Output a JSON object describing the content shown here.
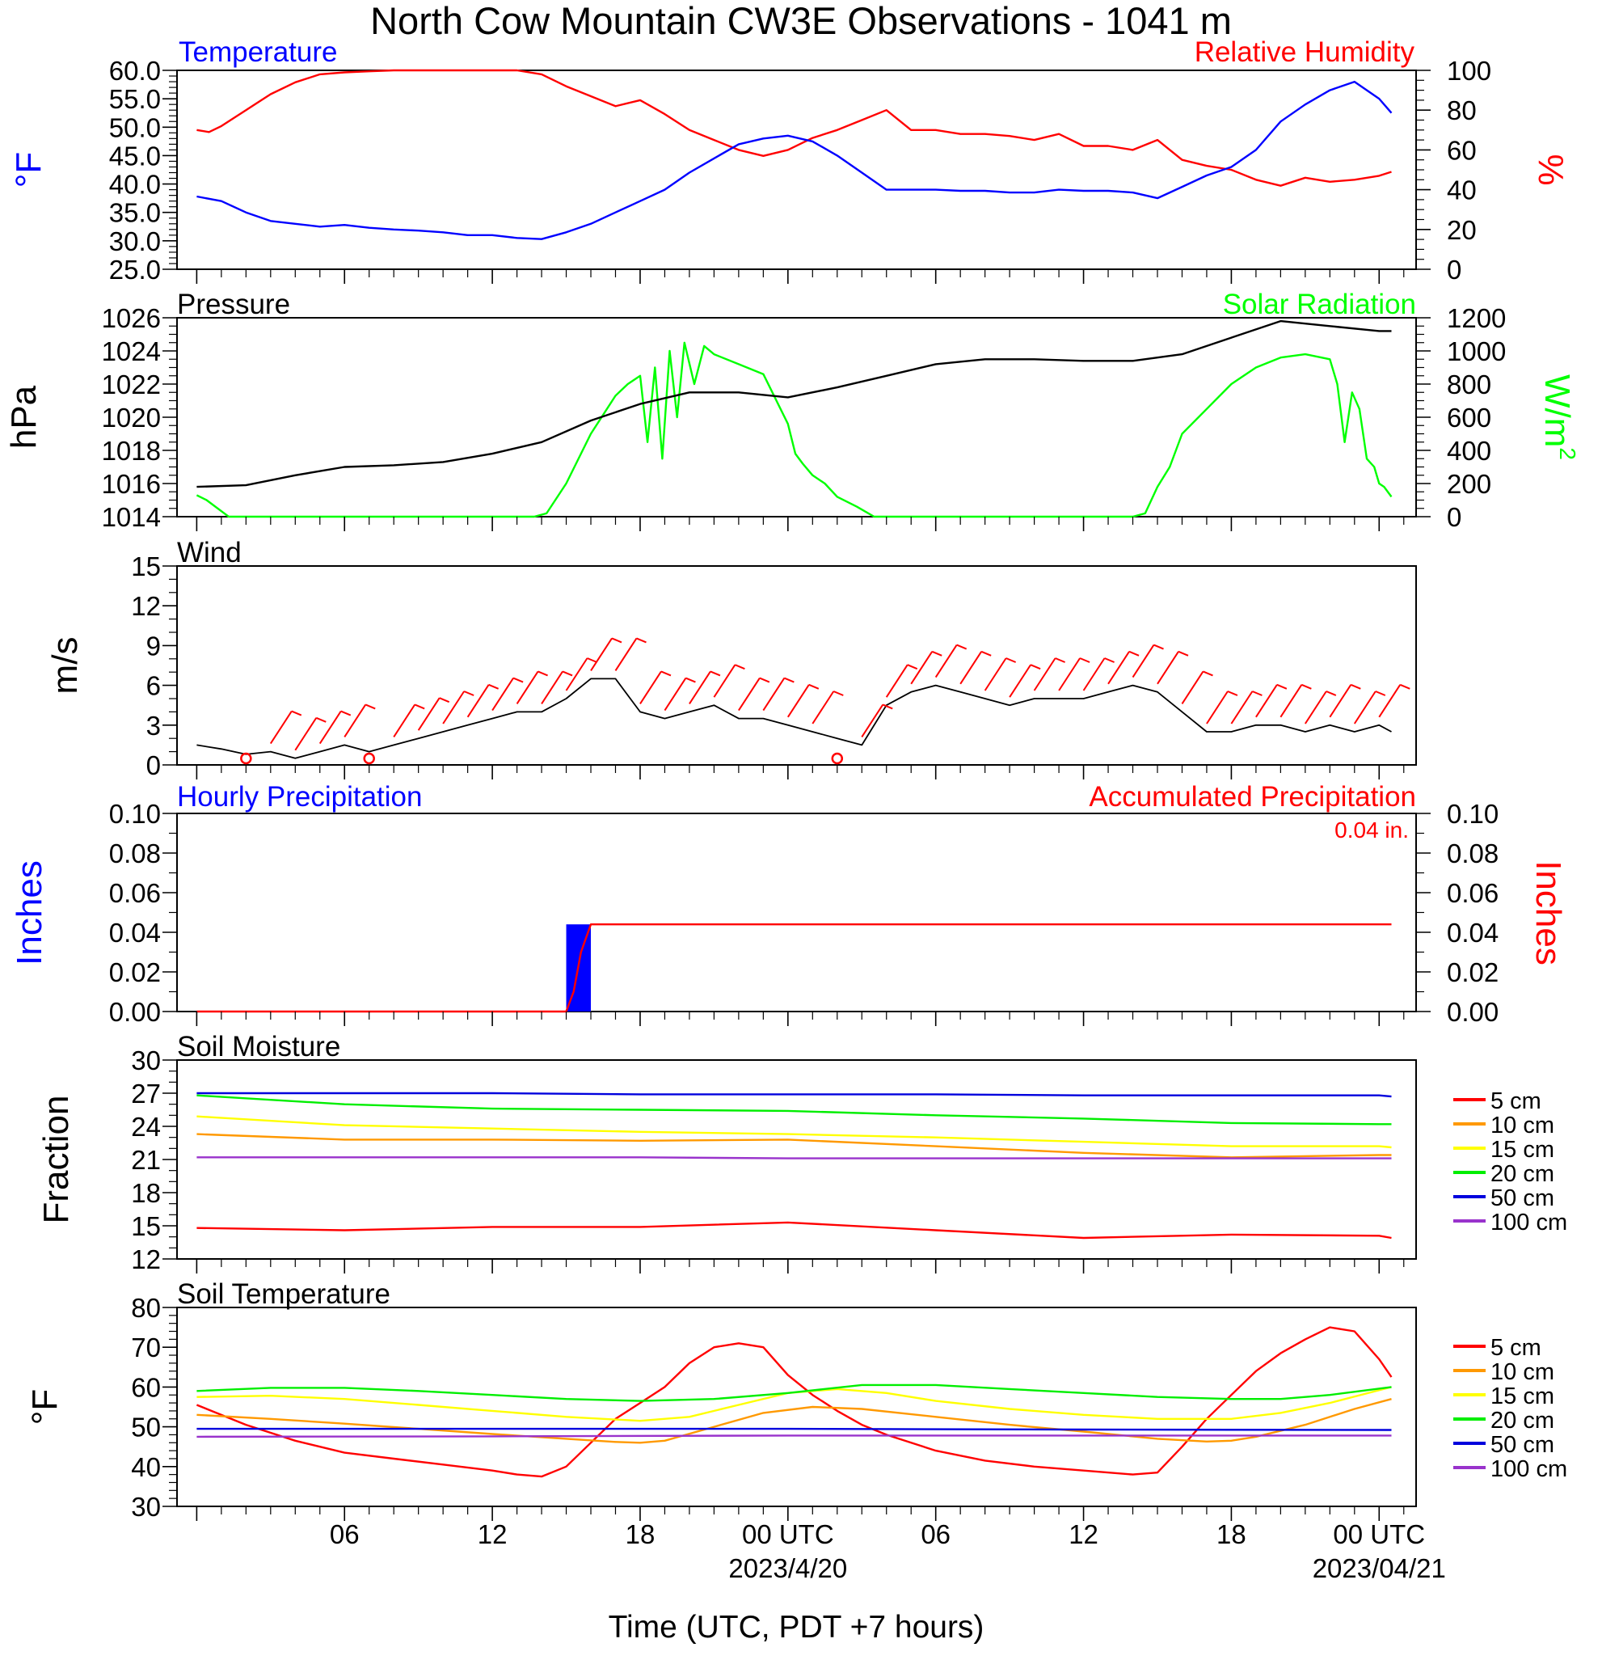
{
  "title": "North Cow Mountain CW3E Observations - 1041 m",
  "xaxis": {
    "title": "Time (UTC, PDT +7 hours)",
    "tick_labels": [
      "06",
      "12",
      "18",
      "00 UTC",
      "06",
      "12",
      "18",
      "00 UTC"
    ],
    "tick_hours": [
      6,
      12,
      18,
      24,
      30,
      36,
      42,
      48
    ],
    "date_labels": [
      "2023/4/20",
      "2023/04/21"
    ],
    "date_hours": [
      24,
      48
    ],
    "range_hours": [
      -0.8,
      49.5
    ]
  },
  "colors": {
    "temperature": "#0000ff",
    "humidity": "#ff0000",
    "pressure": "#000000",
    "solar": "#00ff00",
    "wind": "#000000",
    "barbs": "#ff0000",
    "hourly_precip": "#0000ff",
    "accum_precip": "#ff0000"
  },
  "depth_colors": {
    "5 cm": "#ff0000",
    "10 cm": "#ff9900",
    "15 cm": "#ffff00",
    "20 cm": "#00ee00",
    "50 cm": "#0000dd",
    "100 cm": "#9933cc"
  },
  "chart_data": [
    {
      "type": "line",
      "panel": "temperature-humidity",
      "left_label": "Temperature",
      "right_label": "Relative Humidity",
      "left_unit": "°F",
      "right_unit": "%",
      "left_ylim": [
        25,
        60
      ],
      "right_ylim": [
        0,
        100
      ],
      "left_ticks": [
        "25.0",
        "30.0",
        "35.0",
        "40.0",
        "45.0",
        "50.0",
        "55.0",
        "60.0"
      ],
      "right_ticks": [
        "0",
        "20",
        "40",
        "60",
        "80",
        "100"
      ],
      "series": [
        {
          "name": "Temperature",
          "axis": "left",
          "color": "#0000ff",
          "x": [
            0,
            1,
            2,
            3,
            4,
            5,
            6,
            7,
            8,
            9,
            10,
            11,
            12,
            13,
            14,
            15,
            16,
            17,
            18,
            19,
            20,
            21,
            22,
            23,
            24,
            25,
            26,
            27,
            28,
            29,
            30,
            31,
            32,
            33,
            34,
            35,
            36,
            37,
            38,
            39,
            40,
            41,
            42,
            43,
            44,
            45,
            46,
            47,
            48,
            48.5
          ],
          "y": [
            37.8,
            37.0,
            35.0,
            33.5,
            33.0,
            32.5,
            32.8,
            32.3,
            32.0,
            31.8,
            31.5,
            31.0,
            31.0,
            30.5,
            30.3,
            31.5,
            33.0,
            35.0,
            37.0,
            39.0,
            42.0,
            44.5,
            47.0,
            48.0,
            48.5,
            47.5,
            45.0,
            42.0,
            39.0,
            39.0,
            39.0,
            38.8,
            38.8,
            38.5,
            38.5,
            39.0,
            38.8,
            38.8,
            38.5,
            37.5,
            39.5,
            41.5,
            43.0,
            46.0,
            51.0,
            54.0,
            56.5,
            58.0,
            55.0,
            52.5
          ]
        },
        {
          "name": "Relative Humidity",
          "axis": "right",
          "color": "#ff0000",
          "x": [
            0,
            0.5,
            1,
            2,
            3,
            4,
            5,
            6,
            7,
            8,
            9,
            10,
            11,
            12,
            13,
            14,
            15,
            16,
            17,
            18,
            19,
            20,
            21,
            22,
            23,
            24,
            25,
            26,
            27,
            28,
            29,
            30,
            31,
            32,
            33,
            34,
            35,
            36,
            37,
            38,
            39,
            40,
            41,
            42,
            43,
            44,
            45,
            46,
            47,
            48,
            48.5
          ],
          "y": [
            70,
            69,
            72,
            80,
            88,
            94,
            98,
            99,
            99.5,
            100,
            100,
            100,
            100,
            100,
            100,
            98,
            92,
            87,
            82,
            85,
            78,
            70,
            65,
            60,
            57,
            60,
            66,
            70,
            75,
            80,
            70,
            70,
            68,
            68,
            67,
            65,
            68,
            62,
            62,
            60,
            65,
            55,
            52,
            50,
            45,
            42,
            46,
            44,
            45,
            47,
            49
          ]
        }
      ]
    },
    {
      "type": "line",
      "panel": "pressure-solar",
      "left_label": "Pressure",
      "right_label": "Solar Radiation",
      "left_unit": "hPa",
      "right_unit": "W/m",
      "right_unit_sup": "2",
      "left_ylim": [
        1014,
        1026
      ],
      "right_ylim": [
        0,
        1200
      ],
      "left_ticks": [
        "1014",
        "1016",
        "1018",
        "1020",
        "1022",
        "1024",
        "1026"
      ],
      "right_ticks": [
        "0",
        "200",
        "400",
        "600",
        "800",
        "1000",
        "1200"
      ],
      "series": [
        {
          "name": "Pressure",
          "axis": "left",
          "color": "#000000",
          "x": [
            0,
            2,
            4,
            6,
            8,
            10,
            12,
            14,
            16,
            18,
            20,
            22,
            24,
            26,
            28,
            30,
            32,
            34,
            36,
            38,
            40,
            42,
            44,
            46,
            48,
            48.5
          ],
          "y": [
            1015.8,
            1015.9,
            1016.5,
            1017.0,
            1017.1,
            1017.3,
            1017.8,
            1018.5,
            1019.8,
            1020.8,
            1021.5,
            1021.5,
            1021.2,
            1021.8,
            1022.5,
            1023.2,
            1023.5,
            1023.5,
            1023.4,
            1023.4,
            1023.8,
            1024.8,
            1025.8,
            1025.5,
            1025.2,
            1025.2
          ]
        },
        {
          "name": "Solar Radiation",
          "axis": "right",
          "color": "#00ff00",
          "x": [
            0,
            0.4,
            1.3,
            12,
            13.7,
            14.2,
            15,
            16,
            17,
            17.5,
            18,
            18.3,
            18.6,
            18.9,
            19.2,
            19.5,
            19.8,
            20.2,
            20.6,
            21,
            22,
            23,
            24,
            24.3,
            24.6,
            25,
            25.5,
            26,
            26.8,
            27.5,
            30,
            37,
            38,
            38.5,
            39,
            39.5,
            40,
            41,
            42,
            43,
            44,
            45,
            46,
            46.3,
            46.6,
            46.9,
            47.2,
            47.5,
            47.8,
            48,
            48.2,
            48.5
          ],
          "y": [
            130,
            100,
            0,
            0,
            0,
            20,
            200,
            500,
            730,
            800,
            850,
            450,
            900,
            350,
            1000,
            600,
            1050,
            800,
            1030,
            980,
            920,
            860,
            560,
            380,
            320,
            250,
            200,
            120,
            60,
            0,
            0,
            0,
            0,
            20,
            180,
            300,
            500,
            650,
            800,
            900,
            960,
            980,
            950,
            800,
            450,
            750,
            650,
            350,
            300,
            200,
            180,
            120
          ]
        }
      ]
    },
    {
      "type": "line",
      "panel": "wind",
      "label": "Wind",
      "unit": "m/s",
      "ylim": [
        0,
        15
      ],
      "ticks": [
        "0",
        "3",
        "6",
        "9",
        "12",
        "15"
      ],
      "series": [
        {
          "name": "Wind",
          "color": "#000000",
          "x": [
            0,
            1,
            2,
            3,
            4,
            5,
            6,
            7,
            8,
            9,
            10,
            11,
            12,
            13,
            14,
            15,
            16,
            17,
            18,
            19,
            20,
            21,
            22,
            23,
            24,
            25,
            26,
            27,
            28,
            29,
            30,
            31,
            32,
            33,
            34,
            35,
            36,
            37,
            38,
            39,
            40,
            41,
            42,
            43,
            44,
            45,
            46,
            47,
            48,
            48.5
          ],
          "y": [
            1.5,
            1.2,
            0.8,
            1.0,
            0.5,
            1.0,
            1.5,
            1.0,
            1.5,
            2.0,
            2.5,
            3.0,
            3.5,
            4.0,
            4.0,
            5.0,
            6.5,
            6.5,
            4.0,
            3.5,
            4.0,
            4.5,
            3.5,
            3.5,
            3.0,
            2.5,
            2.0,
            1.5,
            4.5,
            5.5,
            6.0,
            5.5,
            5.0,
            4.5,
            5.0,
            5.0,
            5.0,
            5.5,
            6.0,
            5.5,
            4.0,
            2.5,
            2.5,
            3.0,
            3.0,
            2.5,
            3.0,
            2.5,
            3.0,
            2.5
          ]
        }
      ],
      "barb_hours": [
        2,
        3,
        4,
        5,
        6,
        7,
        8,
        9,
        10,
        11,
        12,
        13,
        14,
        15,
        16,
        17,
        18,
        19,
        20,
        21,
        22,
        23,
        24,
        25,
        26,
        27,
        28,
        29,
        30,
        31,
        32,
        33,
        34,
        35,
        36,
        37,
        38,
        39,
        40,
        41,
        42,
        43,
        44,
        45,
        46,
        47,
        48
      ],
      "calm_hours": [
        2,
        7,
        26
      ]
    },
    {
      "type": "bar",
      "panel": "precipitation",
      "left_label": "Hourly Precipitation",
      "right_label": "Accumulated Precipitation",
      "total_annotation": "0.04 in.",
      "left_unit": "Inches",
      "right_unit": "Inches",
      "ylim": [
        0,
        0.1
      ],
      "left_ticks": [
        "0.00",
        "0.02",
        "0.04",
        "0.06",
        "0.08",
        "0.10"
      ],
      "right_ticks": [
        "0.00",
        "0.02",
        "0.04",
        "0.06",
        "0.08",
        "0.10"
      ],
      "bars": [
        {
          "start_hour": 15,
          "end_hour": 16,
          "value": 0.044
        }
      ],
      "accumulated": {
        "x": [
          0,
          15,
          15.3,
          15.6,
          16,
          48.5
        ],
        "y": [
          0,
          0,
          0.01,
          0.03,
          0.044,
          0.044
        ]
      }
    },
    {
      "type": "line",
      "panel": "soil-moisture",
      "label": "Soil Moisture",
      "unit": "Fraction",
      "ylim": [
        12,
        30
      ],
      "ticks": [
        "12",
        "15",
        "18",
        "21",
        "24",
        "27",
        "30"
      ],
      "x": [
        0,
        6,
        12,
        18,
        24,
        30,
        36,
        42,
        48,
        48.5
      ],
      "series": [
        {
          "name": "5 cm",
          "values": [
            14.8,
            14.6,
            14.9,
            14.9,
            15.3,
            14.6,
            13.9,
            14.2,
            14.1,
            13.9
          ]
        },
        {
          "name": "10 cm",
          "values": [
            23.3,
            22.8,
            22.8,
            22.7,
            22.8,
            22.2,
            21.6,
            21.2,
            21.4,
            21.4
          ]
        },
        {
          "name": "15 cm",
          "values": [
            24.9,
            24.1,
            23.8,
            23.5,
            23.3,
            23.0,
            22.6,
            22.2,
            22.2,
            22.1
          ]
        },
        {
          "name": "20 cm",
          "values": [
            26.8,
            26.0,
            25.6,
            25.5,
            25.4,
            25.0,
            24.7,
            24.3,
            24.2,
            24.2
          ]
        },
        {
          "name": "50 cm",
          "values": [
            27.0,
            27.0,
            27.0,
            26.9,
            26.9,
            26.9,
            26.8,
            26.8,
            26.8,
            26.7
          ]
        },
        {
          "name": "100 cm",
          "values": [
            21.2,
            21.2,
            21.2,
            21.2,
            21.1,
            21.1,
            21.1,
            21.1,
            21.1,
            21.1
          ]
        }
      ]
    },
    {
      "type": "line",
      "panel": "soil-temperature",
      "label": "Soil Temperature",
      "unit": "°F",
      "ylim": [
        30,
        80
      ],
      "ticks": [
        "30",
        "40",
        "50",
        "60",
        "70",
        "80"
      ],
      "legend": [
        "5 cm",
        "10 cm",
        "15 cm",
        "20 cm",
        "50 cm",
        "100 cm"
      ],
      "series": [
        {
          "name": "5 cm",
          "x": [
            0,
            2,
            4,
            6,
            8,
            10,
            12,
            13,
            14,
            15,
            16,
            17,
            18,
            19,
            20,
            21,
            22,
            23,
            24,
            25,
            26,
            27,
            28,
            30,
            32,
            34,
            36,
            38,
            39,
            40,
            41,
            42,
            43,
            44,
            45,
            46,
            47,
            48,
            48.5
          ],
          "y": [
            55.5,
            50.5,
            46.5,
            43.5,
            42.0,
            40.5,
            39.0,
            38.0,
            37.5,
            40.0,
            46.0,
            52.0,
            56.0,
            60.0,
            66.0,
            70.0,
            71.0,
            70.0,
            63.0,
            58.0,
            54.0,
            50.5,
            48.0,
            44.0,
            41.5,
            40.0,
            39.0,
            38.0,
            38.5,
            45.0,
            52.0,
            58.0,
            64.0,
            68.5,
            72.0,
            75.0,
            74.0,
            67.0,
            62.5
          ]
        },
        {
          "name": "10 cm",
          "x": [
            0,
            3,
            6,
            9,
            12,
            15,
            17,
            18,
            19,
            21,
            23,
            25,
            27,
            30,
            33,
            36,
            39,
            41,
            42,
            43,
            45,
            47,
            48.5
          ],
          "y": [
            53.0,
            52.0,
            50.8,
            49.5,
            48.2,
            47.0,
            46.2,
            46.0,
            46.5,
            50.0,
            53.5,
            55.0,
            54.5,
            52.5,
            50.5,
            48.8,
            47.0,
            46.3,
            46.5,
            47.5,
            50.5,
            54.5,
            57.0
          ]
        },
        {
          "name": "15 cm",
          "x": [
            0,
            3,
            6,
            9,
            12,
            15,
            18,
            20,
            22,
            24,
            26,
            28,
            30,
            33,
            36,
            39,
            42,
            44,
            46,
            48.5
          ],
          "y": [
            57.5,
            57.8,
            57.0,
            55.5,
            54.0,
            52.5,
            51.5,
            52.5,
            55.5,
            58.5,
            59.5,
            58.5,
            56.5,
            54.5,
            53.0,
            52.0,
            52.0,
            53.5,
            56.0,
            60.0
          ]
        },
        {
          "name": "20 cm",
          "x": [
            0,
            3,
            6,
            9,
            12,
            15,
            18,
            21,
            24,
            27,
            30,
            33,
            36,
            39,
            42,
            44,
            46,
            48.5
          ],
          "y": [
            59.0,
            59.8,
            59.8,
            59.0,
            58.0,
            57.0,
            56.5,
            57.0,
            58.5,
            60.5,
            60.5,
            59.5,
            58.5,
            57.5,
            57.0,
            57.0,
            58.0,
            60.0
          ]
        },
        {
          "name": "50 cm",
          "x": [
            0,
            12,
            24,
            36,
            48.5
          ],
          "y": [
            49.5,
            49.5,
            49.5,
            49.3,
            49.2
          ]
        },
        {
          "name": "100 cm",
          "x": [
            0,
            12,
            24,
            36,
            48.5
          ],
          "y": [
            47.5,
            47.6,
            47.8,
            47.8,
            47.8
          ]
        }
      ]
    }
  ]
}
